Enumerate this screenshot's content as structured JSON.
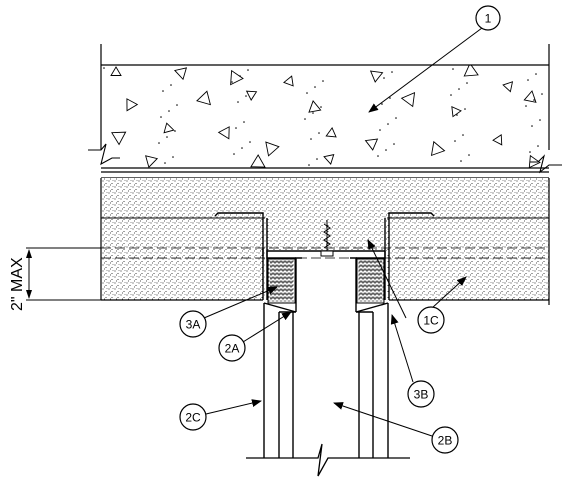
{
  "callouts": {
    "c1": "1",
    "c1c": "1C",
    "c2a": "2A",
    "c2b": "2B",
    "c2c": "2C",
    "c3a": "3A",
    "c3b": "3B"
  },
  "dimension": {
    "label": "2\" MAX"
  }
}
